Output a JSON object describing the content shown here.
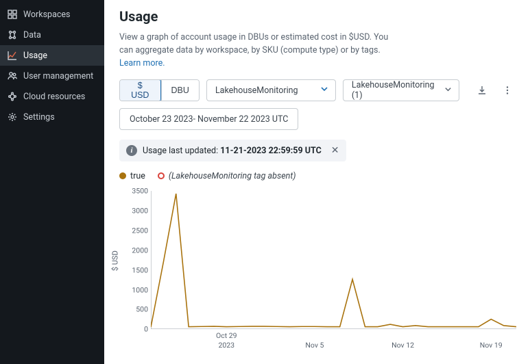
{
  "sidebar": {
    "items": [
      {
        "label": "Workspaces",
        "icon": "workspaces"
      },
      {
        "label": "Data",
        "icon": "data"
      },
      {
        "label": "Usage",
        "icon": "usage",
        "active": true
      },
      {
        "label": "User management",
        "icon": "users"
      },
      {
        "label": "Cloud resources",
        "icon": "cloud"
      },
      {
        "label": "Settings",
        "icon": "settings"
      }
    ]
  },
  "page": {
    "title": "Usage",
    "description_prefix": "View a graph of account usage in DBUs or estimated cost in $USD. You can aggregate data by workspace, by SKU (compute type) or by tags. ",
    "learn_more": "Learn more."
  },
  "controls": {
    "unit_options": [
      "$ USD",
      "DBU"
    ],
    "unit_selected": "$ USD",
    "filter1": "LakehouseMonitoring",
    "filter2": "LakehouseMonitoring (1)",
    "date_range": "October 23 2023- November 22 2023 UTC"
  },
  "banner": {
    "prefix": "Usage last updated: ",
    "value": "11-21-2023 22:59:59 UTC"
  },
  "legend": {
    "series1": {
      "label": "true",
      "color": "#a9730e"
    },
    "series2": {
      "label": "(LakehouseMonitoring tag absent)",
      "color": "#d9453d"
    }
  },
  "chart": {
    "type": "line",
    "ylabel": "$ USD",
    "ylim": [
      0,
      3500
    ],
    "ytick_step": 500,
    "yticks": [
      0,
      500,
      1000,
      1500,
      2000,
      2500,
      3000,
      3500
    ],
    "x_points": 30,
    "xticks": [
      {
        "pos": 6,
        "label": "Oct 29",
        "sub": "2023"
      },
      {
        "pos": 13,
        "label": "Nov 5"
      },
      {
        "pos": 20,
        "label": "Nov 12"
      },
      {
        "pos": 27,
        "label": "Nov 19"
      }
    ],
    "series1_values": [
      50,
      1700,
      3430,
      60,
      65,
      70,
      60,
      65,
      70,
      70,
      65,
      60,
      65,
      65,
      60,
      60,
      1260,
      60,
      60,
      120,
      60,
      90,
      60,
      60,
      60,
      60,
      60,
      250,
      90,
      60
    ],
    "series1_color": "#a9730e",
    "axis_color": "#9aa2aa",
    "background_color": "#ffffff",
    "line_width": 1.6
  }
}
